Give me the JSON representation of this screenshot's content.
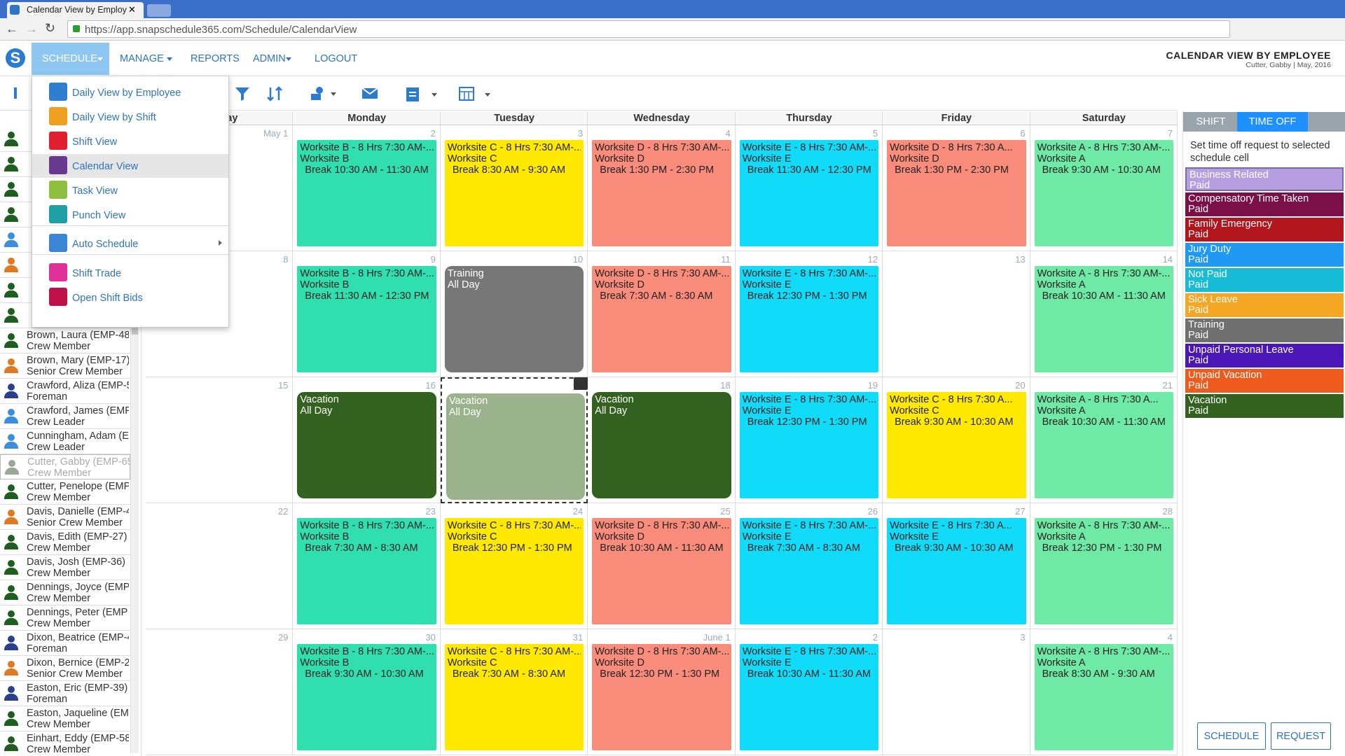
{
  "browser": {
    "tab_title": "Calendar View by Employ",
    "url": "https://app.snapschedule365.com/Schedule/CalendarView"
  },
  "nav": {
    "items": [
      "SCHEDULE",
      "MANAGE",
      "REPORTS",
      "ADMIN",
      "LOGOUT"
    ],
    "page_title": "CALENDAR VIEW BY EMPLOYEE",
    "page_subtitle": "Cutter, Gabby | May, 2016"
  },
  "menu": {
    "items": [
      {
        "label": "Daily View by Employee",
        "color": "#2f7fd0"
      },
      {
        "label": "Daily View by Shift",
        "color": "#f0a020"
      },
      {
        "label": "Shift View",
        "color": "#e02030"
      },
      {
        "label": "Calendar View",
        "color": "#6a3a90"
      },
      {
        "label": "Task View",
        "color": "#8fbf3f"
      },
      {
        "label": "Punch View",
        "color": "#1fa0a6"
      },
      {
        "label": "Auto Schedule",
        "color": "#3a86d4"
      },
      {
        "label": "Shift Trade",
        "color": "#e0309a"
      },
      {
        "label": "Open Shift Bids",
        "color": "#c0104a"
      }
    ]
  },
  "employees": [
    {
      "name": "Brown, Laura (EMP-48",
      "role": "Crew Member",
      "color": "#1e5e1e"
    },
    {
      "name": "Brown, Mary (EMP-17)",
      "role": "Senior Crew Member",
      "color": "#e07a20"
    },
    {
      "name": "Crawford, Aliza (EMP-5",
      "role": "Foreman",
      "color": "#2b3f8f"
    },
    {
      "name": "Crawford, James (EMP.",
      "role": "Crew Leader",
      "color": "#3a8ee0"
    },
    {
      "name": "Cunningham, Adam (E",
      "role": "Crew Leader",
      "color": "#3a8ee0"
    },
    {
      "name": "Cutter, Gabby (EMP-65",
      "role": "Crew Member",
      "color": "#9aa89a"
    },
    {
      "name": "Cutter, Penelope (EMP",
      "role": "Crew Member",
      "color": "#1e5e1e"
    },
    {
      "name": "Davis, Danielle (EMP-4",
      "role": "Senior Crew Member",
      "color": "#e07a20"
    },
    {
      "name": "Davis, Edith (EMP-27)",
      "role": "Crew Member",
      "color": "#1e5e1e"
    },
    {
      "name": "Davis, Josh (EMP-36)",
      "role": "Crew Member",
      "color": "#1e5e1e"
    },
    {
      "name": "Dennings, Joyce (EMP-",
      "role": "Crew Member",
      "color": "#1e5e1e"
    },
    {
      "name": "Dennings, Peter (EMP",
      "role": "Crew Member",
      "color": "#1e5e1e"
    },
    {
      "name": "Dixon, Beatrice (EMP-4",
      "role": "Foreman",
      "color": "#2b3f8f"
    },
    {
      "name": "Dixon, Bernice (EMP-2",
      "role": "Senior Crew Member",
      "color": "#e07a20"
    },
    {
      "name": "Easton, Eric (EMP-39)",
      "role": "Foreman",
      "color": "#2b3f8f"
    },
    {
      "name": "Easton, Jaqueline (EMF",
      "role": "Crew Member",
      "color": "#1e5e1e"
    },
    {
      "name": "Einhart, Eddy (EMP-58",
      "role": "Crew Member",
      "color": "#1e5e1e"
    }
  ],
  "calendar": {
    "weekdays": [
      "Sunday",
      "Monday",
      "Tuesday",
      "Wednesday",
      "Thursday",
      "Friday",
      "Saturday"
    ],
    "weeks": [
      {
        "days": [
          {
            "date": "May 1"
          },
          {
            "date": 2,
            "event": {
              "lines": [
                "Worksite B - 8 Hrs 7:30 AM-...",
                "Worksite B",
                "Break 10:30 AM - 11:30 AM"
              ],
              "color": "#30dfb0"
            }
          },
          {
            "date": 3,
            "event": {
              "lines": [
                "Worksite C - 8 Hrs 7:30 AM-...",
                "Worksite C",
                "Break 8:30 AM - 9:30 AM"
              ],
              "color": "#ffe900"
            }
          },
          {
            "date": 4,
            "event": {
              "lines": [
                "Worksite D - 8 Hrs 7:30 AM-...",
                "Worksite D",
                "Break 1:30 PM - 2:30 PM"
              ],
              "color": "#fa8c7c"
            }
          },
          {
            "date": 5,
            "event": {
              "lines": [
                "Worksite E - 8 Hrs 7:30 AM-...",
                "Worksite E",
                "Break 11:30 AM - 12:30 PM"
              ],
              "color": "#10dbf8"
            }
          },
          {
            "date": 6,
            "event": {
              "lines": [
                "Worksite D - 8 Hrs 7:30 A...",
                "Worksite D",
                "Break 1:30 PM - 2:30 PM"
              ],
              "color": "#fa8c7c"
            }
          },
          {
            "date": 7,
            "event": {
              "lines": [
                "Worksite A - 8 Hrs 7:30 AM-...",
                "Worksite A",
                "Break 9:30 AM - 10:30 AM"
              ],
              "color": "#6ee9a6"
            }
          }
        ]
      },
      {
        "days": [
          {
            "date": 8
          },
          {
            "date": 9,
            "event": {
              "lines": [
                "Worksite B - 8 Hrs 7:30 AM-...",
                "Worksite B",
                "Break 11:30 AM - 12:30 PM"
              ],
              "color": "#30dfb0"
            }
          },
          {
            "date": 10,
            "event": {
              "lines": [
                "Training",
                "All Day"
              ],
              "color": "#777777"
            }
          },
          {
            "date": 11,
            "event": {
              "lines": [
                "Worksite D - 8 Hrs 7:30 AM-...",
                "Worksite D",
                "Break 7:30 AM - 8:30 AM"
              ],
              "color": "#fa8c7c"
            }
          },
          {
            "date": 12,
            "event": {
              "lines": [
                "Worksite E - 8 Hrs 7:30 AM-...",
                "Worksite E",
                "Break 12:30 PM - 1:30 PM"
              ],
              "color": "#10dbf8"
            }
          },
          {
            "date": 13
          },
          {
            "date": 14,
            "event": {
              "lines": [
                "Worksite A - 8 Hrs 7:30 AM-...",
                "Worksite A",
                "Break 10:30 AM - 11:30 AM"
              ],
              "color": "#6ee9a6"
            }
          }
        ]
      },
      {
        "days": [
          {
            "date": 15
          },
          {
            "date": 16,
            "event": {
              "lines": [
                "Vacation",
                "All Day"
              ],
              "color": "#336120"
            }
          },
          {
            "date": 17,
            "selected": true,
            "event": {
              "lines": [
                "Vacation",
                "All Day"
              ],
              "color": "#9bb38c"
            }
          },
          {
            "date": 18,
            "event": {
              "lines": [
                "Vacation",
                "All Day"
              ],
              "color": "#336120"
            }
          },
          {
            "date": 19,
            "event": {
              "lines": [
                "Worksite E - 8 Hrs 7:30 AM-...",
                "Worksite E",
                "Break 12:30 PM - 1:30 PM"
              ],
              "color": "#10dbf8"
            }
          },
          {
            "date": 20,
            "event": {
              "lines": [
                "Worksite C - 8 Hrs 7:30 A...",
                "Worksite C",
                "Break 9:30 AM - 10:30 AM"
              ],
              "color": "#ffe900"
            }
          },
          {
            "date": 21,
            "event": {
              "lines": [
                "Worksite A - 8 Hrs 7:30 A...",
                "Worksite A",
                "Break 10:30 AM - 11:30 AM"
              ],
              "color": "#6ee9a6"
            }
          }
        ]
      },
      {
        "days": [
          {
            "date": 22
          },
          {
            "date": 23,
            "event": {
              "lines": [
                "Worksite B - 8 Hrs 7:30 AM-...",
                "Worksite B",
                "Break 7:30 AM - 8:30 AM"
              ],
              "color": "#30dfb0"
            }
          },
          {
            "date": 24,
            "event": {
              "lines": [
                "Worksite C - 8 Hrs 7:30 AM-...",
                "Worksite C",
                "Break 12:30 PM - 1:30 PM"
              ],
              "color": "#ffe900"
            }
          },
          {
            "date": 25,
            "event": {
              "lines": [
                "Worksite D - 8 Hrs 7:30 AM-...",
                "Worksite D",
                "Break 10:30 AM - 11:30 AM"
              ],
              "color": "#fa8c7c"
            }
          },
          {
            "date": 26,
            "event": {
              "lines": [
                "Worksite E - 8 Hrs 7:30 AM-...",
                "Worksite E",
                "Break 7:30 AM - 8:30 AM"
              ],
              "color": "#10dbf8"
            }
          },
          {
            "date": 27,
            "event": {
              "lines": [
                "Worksite E - 8 Hrs 7:30 A...",
                "Worksite E",
                "Break 9:30 AM - 10:30 AM"
              ],
              "color": "#10dbf8"
            }
          },
          {
            "date": 28,
            "event": {
              "lines": [
                "Worksite A - 8 Hrs 7:30 AM-...",
                "Worksite A",
                "Break 12:30 PM - 1:30 PM"
              ],
              "color": "#6ee9a6"
            }
          }
        ]
      },
      {
        "days": [
          {
            "date": 29
          },
          {
            "date": 30,
            "event": {
              "lines": [
                "Worksite B - 8 Hrs 7:30 AM-...",
                "Worksite B",
                "Break 9:30 AM - 10:30 AM"
              ],
              "color": "#30dfb0"
            }
          },
          {
            "date": 31,
            "event": {
              "lines": [
                "Worksite C - 8 Hrs 7:30 AM-...",
                "Worksite C",
                "Break 7:30 AM - 8:30 AM"
              ],
              "color": "#ffe900"
            }
          },
          {
            "date": "June 1",
            "event": {
              "lines": [
                "Worksite D - 8 Hrs 7:30 AM-...",
                "Worksite D",
                "Break 12:30 PM - 1:30 PM"
              ],
              "color": "#fa8c7c"
            }
          },
          {
            "date": 2,
            "event": {
              "lines": [
                "Worksite E - 8 Hrs 7:30 AM-...",
                "Worksite E",
                "Break 10:30 AM - 11:30 AM"
              ],
              "color": "#10dbf8"
            }
          },
          {
            "date": 3
          },
          {
            "date": 4,
            "event": {
              "lines": [
                "Worksite A - 8 Hrs 7:30 AM-...",
                "Worksite A",
                "Break 8:30 AM - 9:30 AM"
              ],
              "color": "#6ee9a6"
            }
          }
        ]
      }
    ]
  },
  "panel": {
    "tabs": [
      "SHIFT",
      "TIME OFF"
    ],
    "hint": "Set time off request to selected schedule cell",
    "items": [
      {
        "name": "Business Related",
        "note": "Paid",
        "color": "#b79ee0"
      },
      {
        "name": "Compensatory Time Taken",
        "note": "Paid",
        "color": "#7b1049"
      },
      {
        "name": "Family Emergency",
        "note": "Paid",
        "color": "#b3151c"
      },
      {
        "name": "Jury Duty",
        "note": "Paid",
        "color": "#1e9af5"
      },
      {
        "name": "Not Paid",
        "note": "Paid",
        "color": "#17bcd6"
      },
      {
        "name": "Sick Leave",
        "note": "Paid",
        "color": "#f5a623"
      },
      {
        "name": "Training",
        "note": "Paid",
        "color": "#707070"
      },
      {
        "name": "Unpaid Personal Leave",
        "note": "Paid",
        "color": "#4b16b8"
      },
      {
        "name": "Unpaid Vacation",
        "note": "Paid",
        "color": "#ef5a1d"
      },
      {
        "name": "Vacation",
        "note": "Paid",
        "color": "#33621f"
      }
    ],
    "buttons": [
      "SCHEDULE",
      "REQUEST"
    ]
  }
}
